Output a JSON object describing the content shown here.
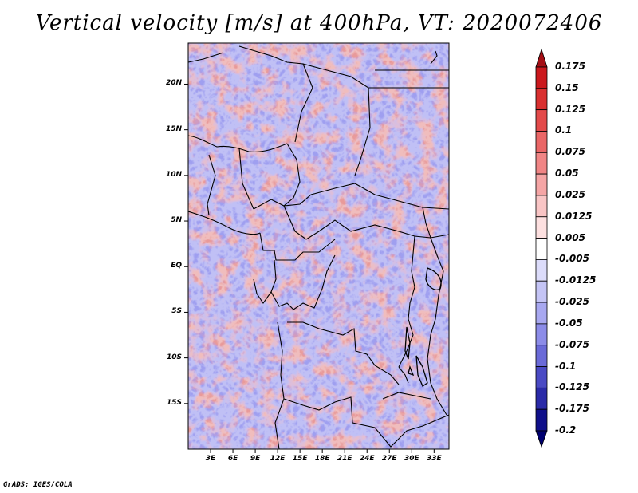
{
  "title": "Vertical velocity [m/s] at 400hPa, VT: 2020072406",
  "credit": "GrADS: IGES/COLA",
  "lat_labels": [
    "20N",
    "15N",
    "10N",
    "5N",
    "EQ",
    "5S",
    "10S",
    "15S"
  ],
  "lat_values": [
    20,
    15,
    10,
    5,
    0,
    -5,
    -10,
    -15
  ],
  "lon_labels": [
    "3E",
    "6E",
    "9E",
    "12E",
    "15E",
    "18E",
    "21E",
    "24E",
    "27E",
    "30E",
    "33E"
  ],
  "lon_values": [
    3,
    6,
    9,
    12,
    15,
    18,
    21,
    24,
    27,
    30,
    33
  ],
  "map_extent": {
    "lon_min": 0,
    "lon_max": 35,
    "lat_min": -20,
    "lat_max": 24.5
  },
  "colorbar": {
    "labels": [
      "0.175",
      "0.15",
      "0.125",
      "0.1",
      "0.075",
      "0.05",
      "0.025",
      "0.0125",
      "0.005",
      "-0.005",
      "-0.0125",
      "-0.025",
      "-0.05",
      "-0.075",
      "-0.1",
      "-0.125",
      "-0.175",
      "-0.2"
    ],
    "colors": [
      "#a50f15",
      "#cb181d",
      "#d93030",
      "#e34a4a",
      "#ea6666",
      "#f08585",
      "#f5a5a5",
      "#f9c5c5",
      "#fde0e0",
      "#ffffff",
      "#dcdcfa",
      "#c4c4f5",
      "#a8a8f0",
      "#8c8ce8",
      "#6a6ad8",
      "#4a4ac4",
      "#2a2aa8",
      "#10108a",
      "#000070"
    ]
  }
}
